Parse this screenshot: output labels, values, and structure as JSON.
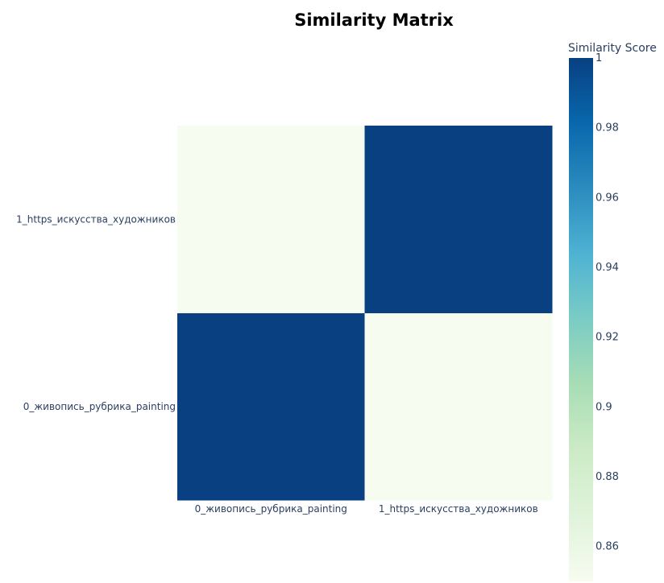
{
  "chart_data": {
    "type": "heatmap",
    "title": "Similarity Matrix",
    "x": [
      "0_живопись_рубрика_painting",
      "1_https_искусства_художников"
    ],
    "y": [
      "0_живопись_рубрика_painting",
      "1_https_искусства_художников"
    ],
    "z": [
      [
        1,
        0.85
      ],
      [
        0.85,
        1
      ]
    ],
    "colorbar": {
      "title": "Similarity Score",
      "range": [
        0.85,
        1
      ],
      "ticks": [
        1,
        0.98,
        0.96,
        0.94,
        0.92,
        0.9,
        0.88,
        0.86
      ],
      "tick_labels": [
        "1",
        "0.98",
        "0.96",
        "0.94",
        "0.92",
        "0.9",
        "0.88",
        "0.86"
      ]
    },
    "colorscale": [
      [
        0.0,
        "#f7fcf0"
      ],
      [
        0.125,
        "#e0f3db"
      ],
      [
        0.25,
        "#ccebc5"
      ],
      [
        0.375,
        "#a8ddb5"
      ],
      [
        0.5,
        "#7bccc4"
      ],
      [
        0.625,
        "#4eb3d3"
      ],
      [
        0.75,
        "#2b8cbe"
      ],
      [
        0.875,
        "#0868ac"
      ],
      [
        1.0,
        "#084081"
      ]
    ]
  }
}
